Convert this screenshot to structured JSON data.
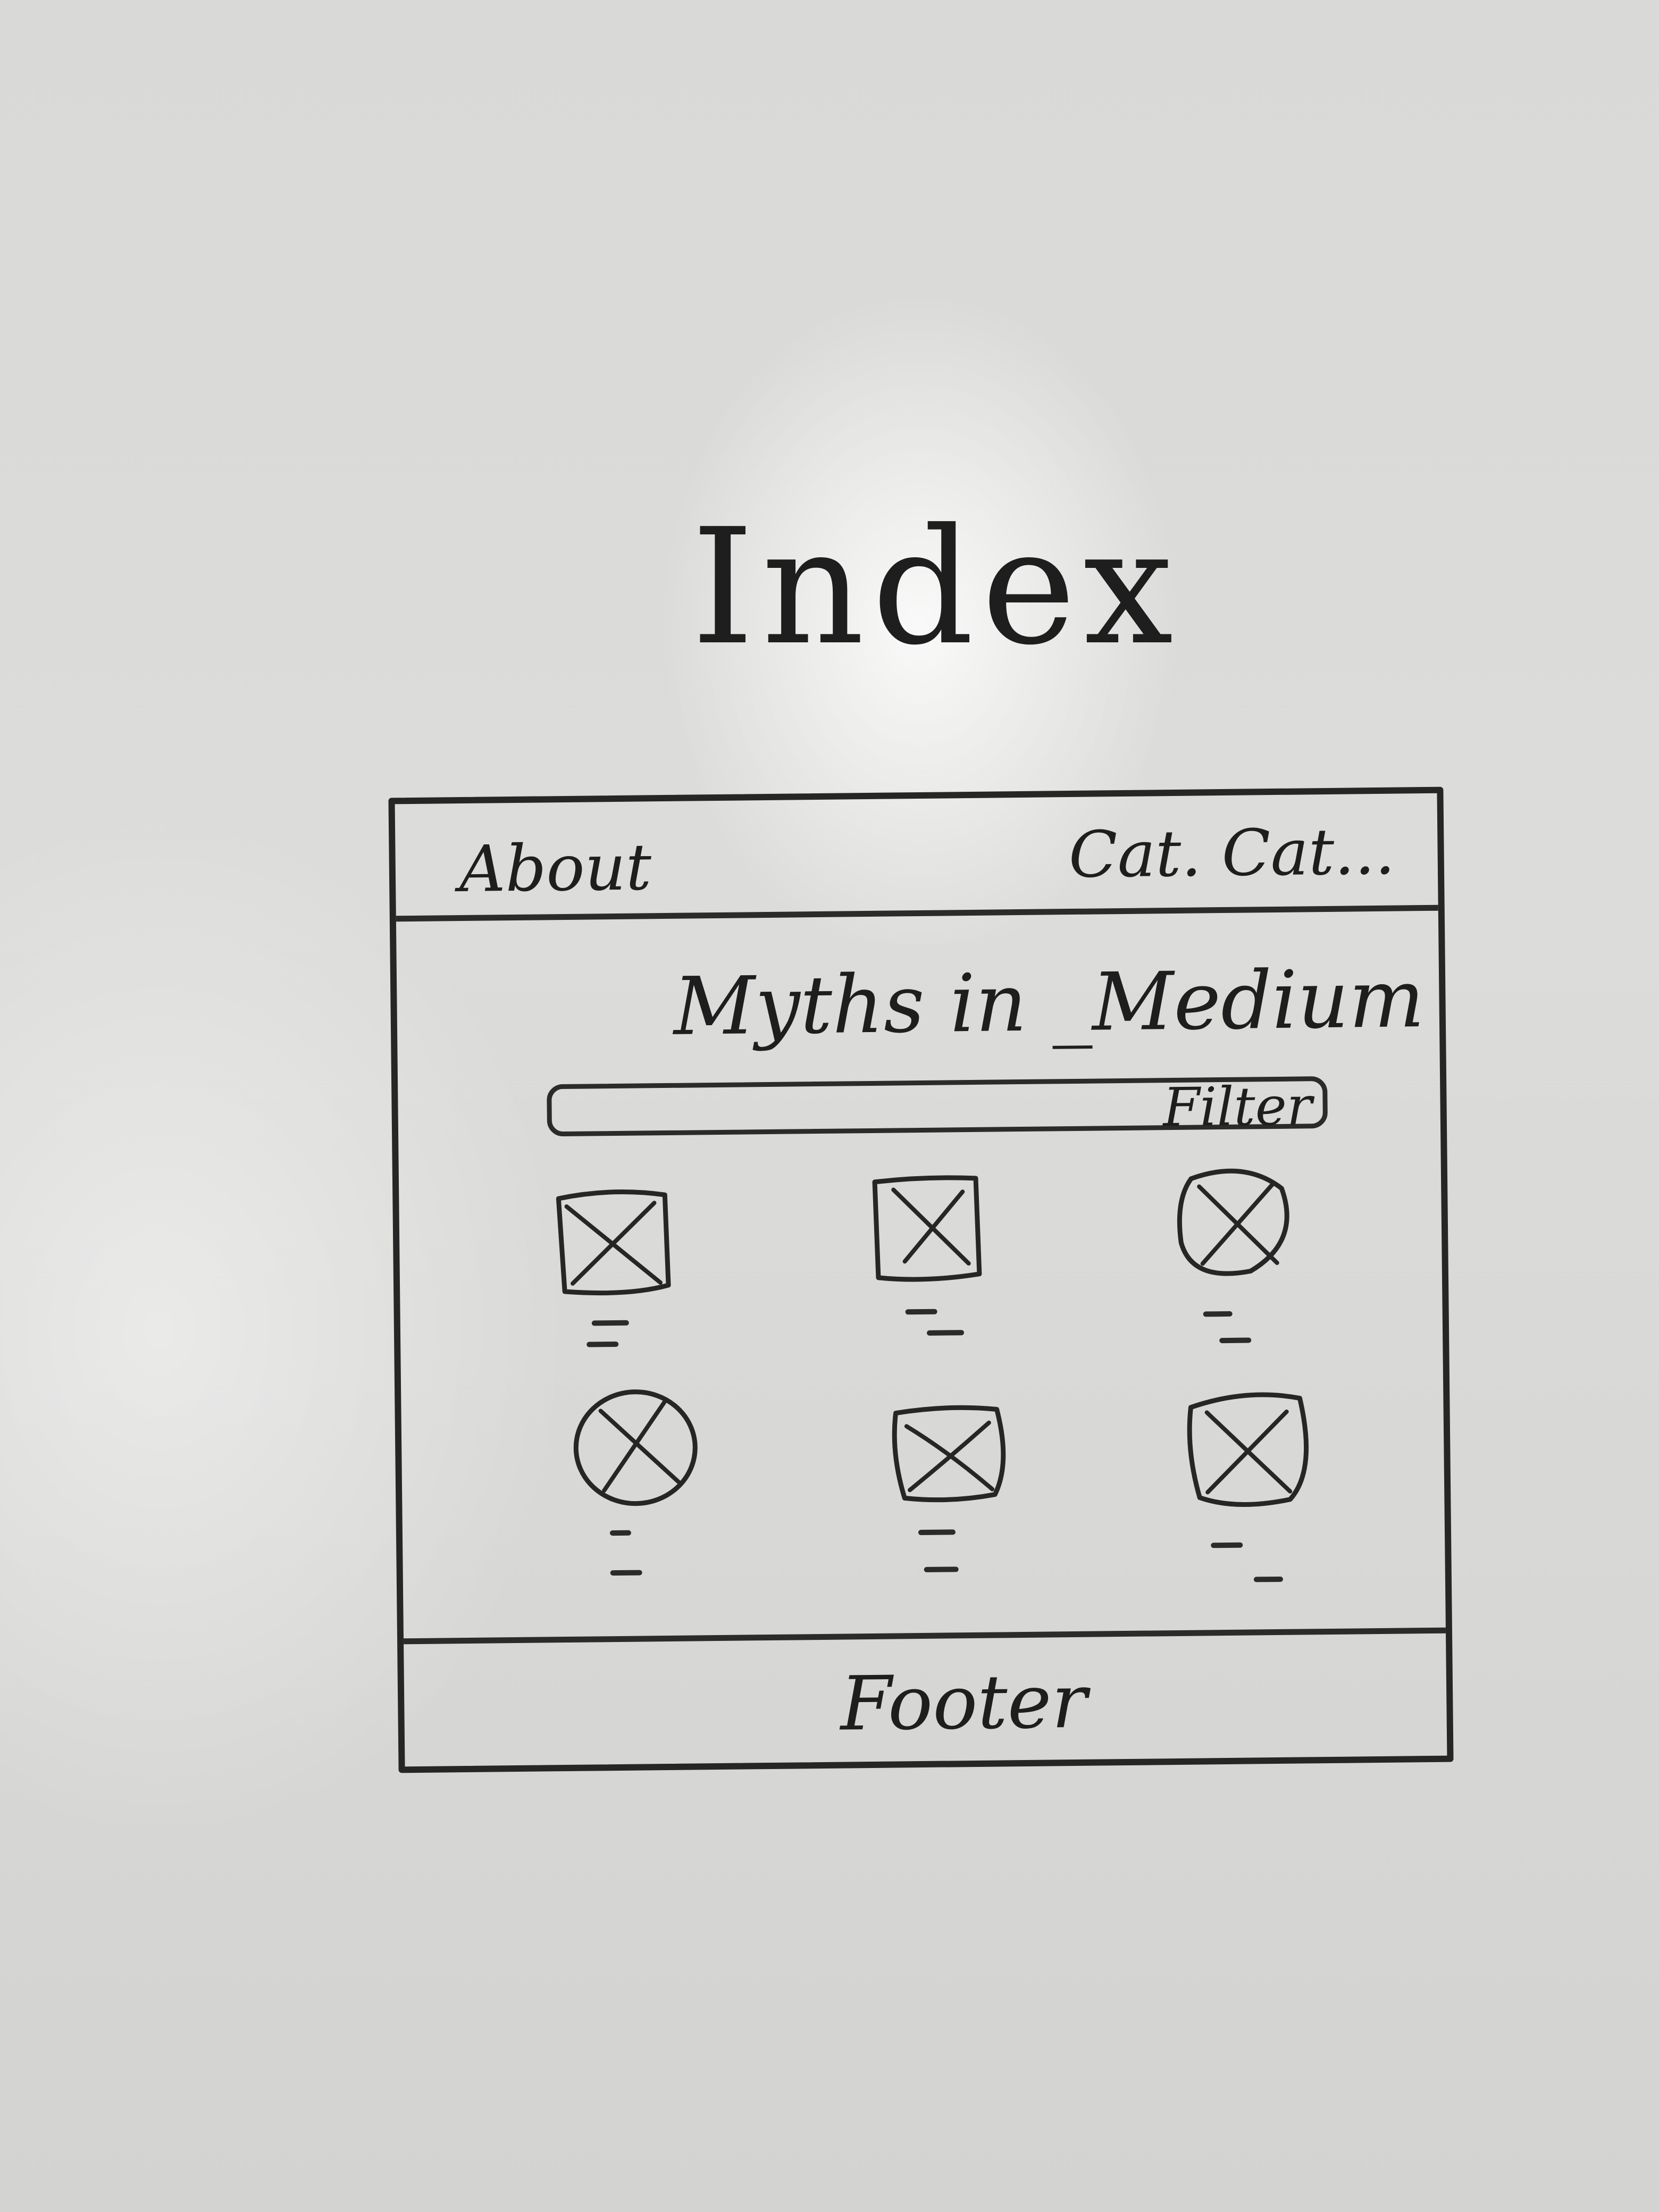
{
  "board_title": "Index",
  "header": {
    "about_label": "About",
    "categories_label": "Cat. Cat..."
  },
  "main": {
    "site_title": "Myths in _Medium",
    "filter_label": "Filter",
    "thumbnails": [
      {
        "icon": "image-placeholder-icon"
      },
      {
        "icon": "image-placeholder-icon"
      },
      {
        "icon": "image-placeholder-icon"
      },
      {
        "icon": "image-placeholder-icon"
      },
      {
        "icon": "image-placeholder-icon"
      },
      {
        "icon": "image-placeholder-icon"
      }
    ]
  },
  "footer": {
    "label": "Footer"
  },
  "colors": {
    "ink": "#1e1e1e",
    "board": "#dcdcda"
  }
}
